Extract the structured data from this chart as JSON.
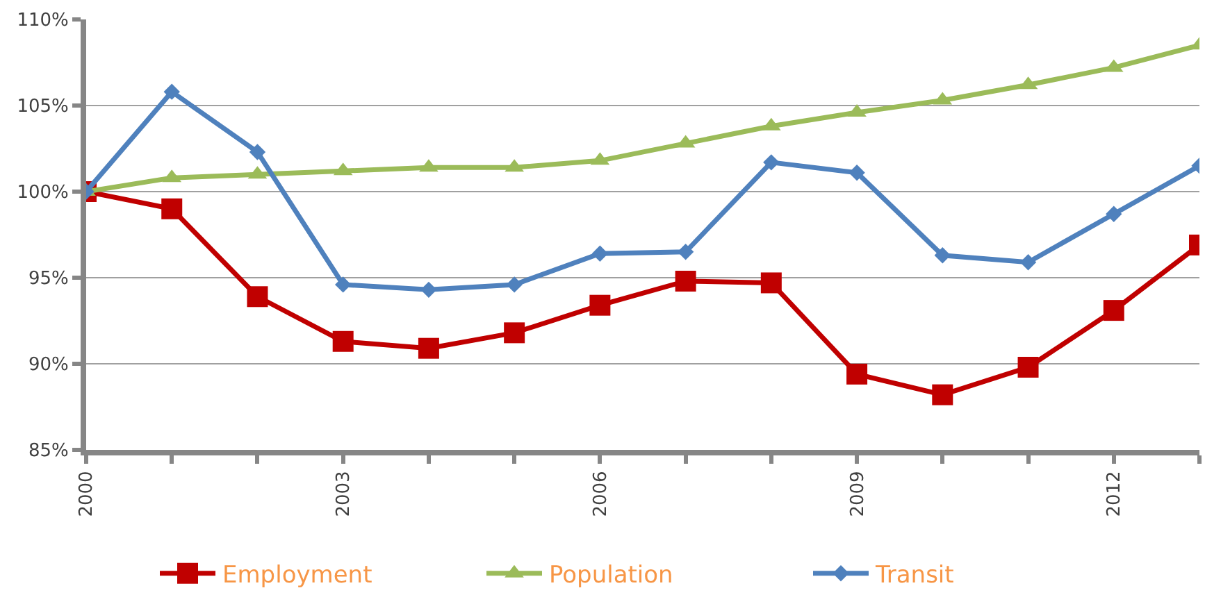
{
  "chart_data": {
    "type": "line",
    "x": [
      2000,
      2001,
      2002,
      2003,
      2004,
      2005,
      2006,
      2007,
      2008,
      2009,
      2010,
      2011,
      2012,
      2013
    ],
    "series": [
      {
        "name": "Employment",
        "color": "#c00000",
        "marker": "square",
        "values": [
          100,
          99.0,
          93.9,
          91.3,
          90.9,
          91.8,
          93.4,
          94.8,
          94.7,
          89.4,
          88.2,
          89.8,
          93.1,
          96.9
        ]
      },
      {
        "name": "Population",
        "color": "#9bbb59",
        "marker": "triangle",
        "values": [
          100,
          100.8,
          101.0,
          101.2,
          101.4,
          101.4,
          101.8,
          102.8,
          103.8,
          104.6,
          105.3,
          106.2,
          107.2,
          108.5
        ]
      },
      {
        "name": "Transit",
        "color": "#4f81bd",
        "marker": "diamond",
        "values": [
          100,
          105.8,
          102.3,
          94.6,
          94.3,
          94.6,
          96.4,
          96.5,
          101.7,
          101.1,
          96.3,
          95.9,
          98.7,
          101.5
        ]
      }
    ],
    "xlim": [
      2000,
      2013
    ],
    "xticks": [
      2000,
      {
        "value": 2001,
        "label": null
      },
      {
        "value": 2002,
        "label": null
      },
      2003,
      {
        "value": 2004,
        "label": null
      },
      {
        "value": 2005,
        "label": null
      },
      2006,
      {
        "value": 2007,
        "label": null
      },
      {
        "value": 2008,
        "label": null
      },
      2009,
      {
        "value": 2010,
        "label": null
      },
      {
        "value": 2011,
        "label": null
      },
      2012,
      {
        "value": 2013,
        "label": null
      }
    ],
    "ylim": [
      85,
      110
    ],
    "yticks": [
      {
        "value": 85,
        "label": "85%"
      },
      {
        "value": 90,
        "label": "90%"
      },
      {
        "value": 95,
        "label": "95%"
      },
      {
        "value": 100,
        "label": "100%"
      },
      {
        "value": 105,
        "label": "105%"
      },
      {
        "value": 110,
        "label": "110%"
      }
    ],
    "grid": "y",
    "legend": "bottom",
    "line_style": "solid"
  }
}
